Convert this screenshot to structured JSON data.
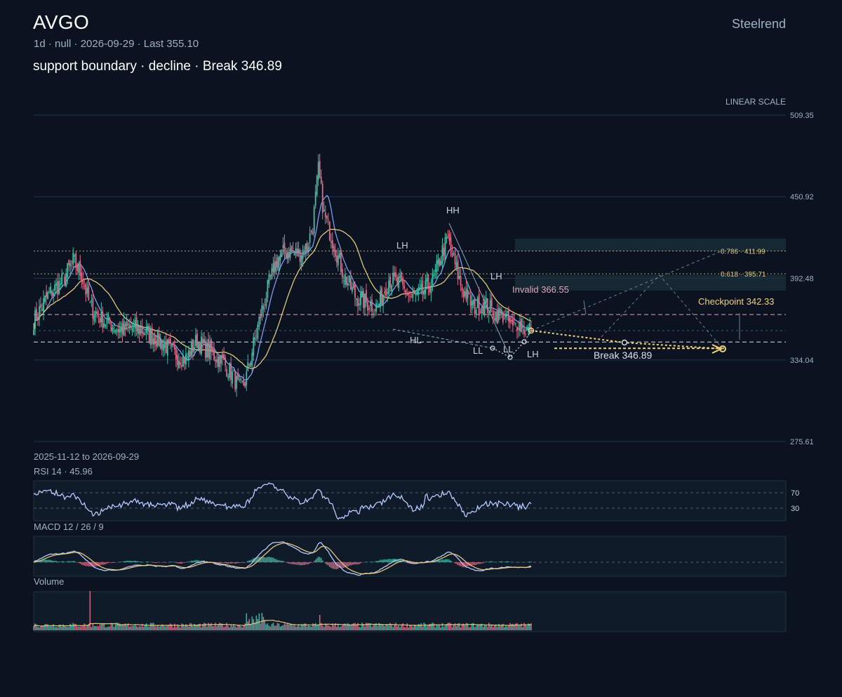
{
  "header": {
    "ticker": "AVGO",
    "brand": "Steelrend",
    "meta": "1d · null · 2026-09-29 · Last 355.10",
    "subtitle": "support boundary · decline · Break 346.89"
  },
  "colors": {
    "background": "#0b1320",
    "up": "#3fbfa8",
    "down": "#e06a86",
    "ma_fast": "#7f9cf5",
    "ma_slow": "#e3c77a",
    "annotation_gold": "#f0d27a",
    "invalid": "#e7a1b8",
    "grid": "#1f3340"
  },
  "chart_data": [
    {
      "type": "candlestick",
      "panel": "price",
      "scale_label": "LINEAR SCALE",
      "range_label": "2025-11-12 to 2026-09-29",
      "ylim": [
        275.61,
        509.35
      ],
      "y_ticks": [
        509.35,
        450.92,
        392.48,
        334.04,
        275.61
      ],
      "interval": "1d",
      "last": 355.1,
      "overlays": [
        {
          "name": "",
          "color": "#7f9cf5"
        },
        {
          "name": "",
          "color": "#e3c77a"
        }
      ],
      "swing_labels": [
        {
          "label": "HH",
          "value": 425
        },
        {
          "label": "LH",
          "value": 412
        },
        {
          "label": "LH",
          "value": 395
        },
        {
          "label": "HL",
          "value": 356
        },
        {
          "label": "LL",
          "value": 342
        },
        {
          "label": "LL",
          "value": 336
        },
        {
          "label": "LH",
          "value": 346
        }
      ],
      "levels": [
        {
          "label": "0.786 · 411.99",
          "value": 411.99
        },
        {
          "label": "0.618 · 395.71",
          "value": 395.71
        },
        {
          "label": "Invalid 366.55",
          "value": 366.55
        },
        {
          "label": "Break 346.89",
          "value": 346.89
        },
        {
          "label": "Checkpoint 342.33",
          "value": 342.33
        }
      ]
    },
    {
      "type": "line",
      "panel": "rsi",
      "title": "RSI 14 · 45.96",
      "value": 45.96,
      "levels": [
        70,
        30
      ]
    },
    {
      "type": "line",
      "panel": "macd",
      "title": "MACD 12 / 26 / 9"
    },
    {
      "type": "bar",
      "panel": "volume",
      "title": "Volume"
    }
  ]
}
